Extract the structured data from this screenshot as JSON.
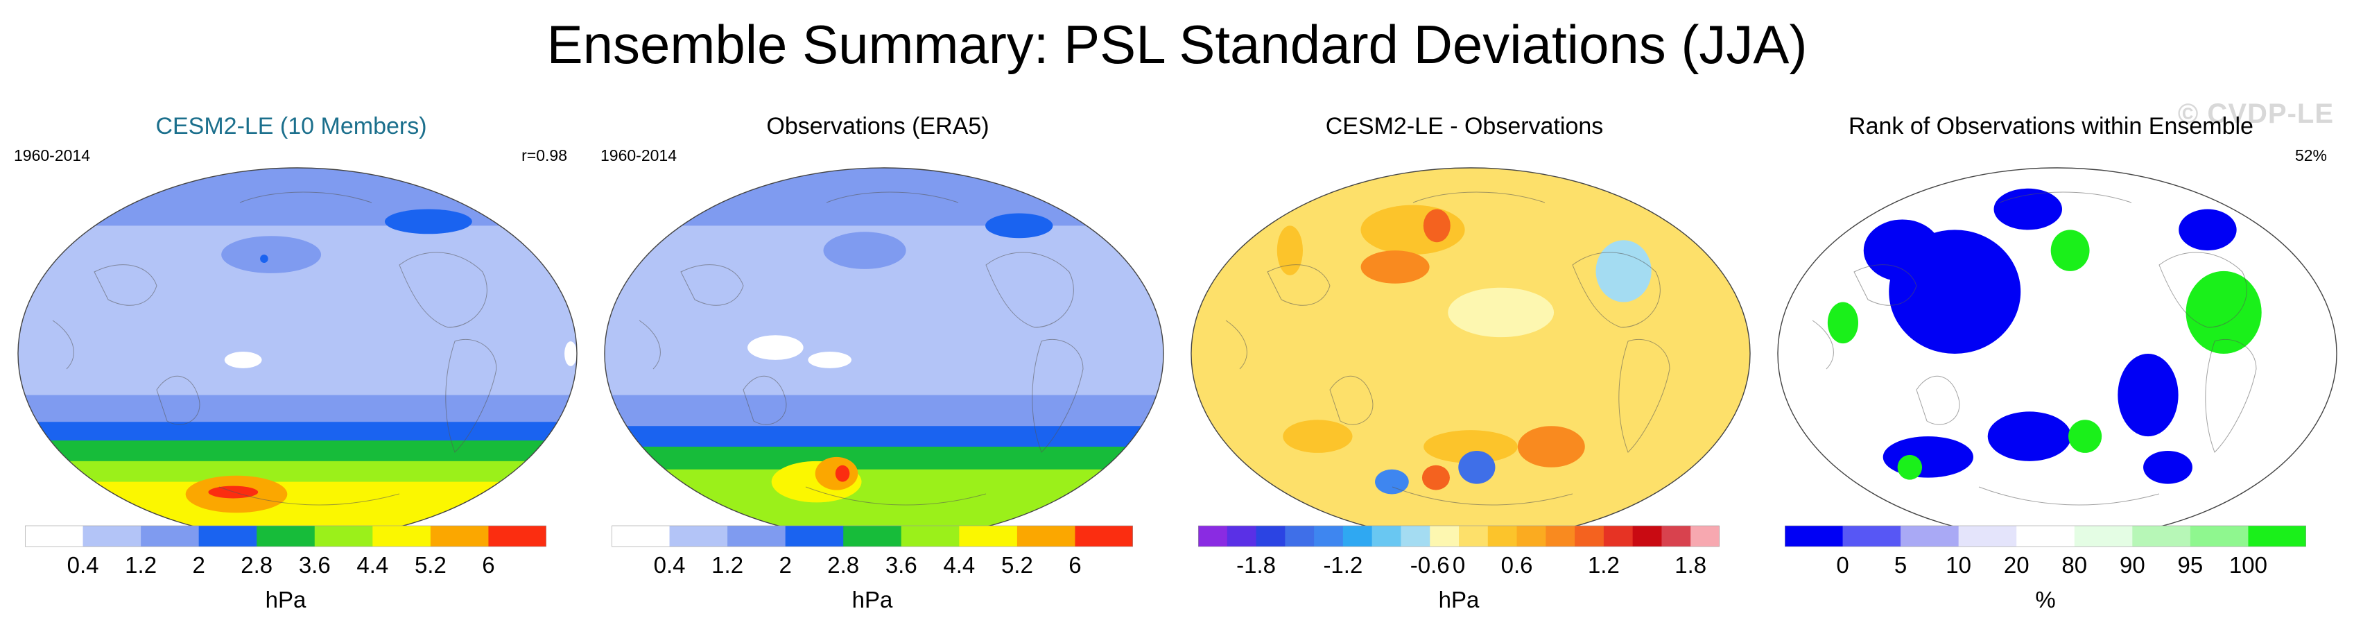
{
  "title": "Ensemble Summary: PSL Standard Deviations (JJA)",
  "colors": {
    "sd_scale": [
      "#ffffff",
      "#b3c4f7",
      "#7f9bf0",
      "#1a63f0",
      "#17bc3a",
      "#9bf01a",
      "#fbf700",
      "#fba700",
      "#fb2d10"
    ],
    "diff_scale": [
      "#8a2be2",
      "#5a30e6",
      "#2b44e3",
      "#3f6fe8",
      "#3e86f0",
      "#2fa8f2",
      "#69c7f2",
      "#a4dcf2",
      "#fdf7b0",
      "#fde06a",
      "#fcc42b",
      "#fbab20",
      "#f98a1f",
      "#f4621f",
      "#e63324",
      "#c90a12",
      "#d8424e",
      "#f7a8b0"
    ],
    "rank_scale": [
      "#0000f5",
      "#5757f5",
      "#a9a9f5",
      "#e4e4fb",
      "#ffffff",
      "#e4fde4",
      "#b7f7b7",
      "#8ff78f",
      "#1af01a"
    ]
  },
  "chart_data": [
    {
      "type": "heatmap",
      "title": "CESM2-LE (10 Members)",
      "period": "1960-2014",
      "stat": "r=0.98",
      "units": "hPa",
      "tick_labels": [
        "0.4",
        "1.2",
        "2",
        "2.8",
        "3.6",
        "4.4",
        "5.2",
        "6"
      ],
      "bands": [
        {
          "lat_max": 90,
          "lat_min": 62,
          "level": 2
        },
        {
          "lat_max": 62,
          "lat_min": 40,
          "level": 1
        },
        {
          "lat_max": 40,
          "lat_min": -20,
          "level": 1
        },
        {
          "lat_max": -20,
          "lat_min": -33,
          "level": 2
        },
        {
          "lat_max": -33,
          "lat_min": -42,
          "level": 3
        },
        {
          "lat_max": -42,
          "lat_min": -52,
          "level": 4
        },
        {
          "lat_max": -52,
          "lat_min": -62,
          "level": 5
        },
        {
          "lat_max": -62,
          "lat_min": -90,
          "level": 6
        }
      ],
      "blobs": [
        {
          "lon": 160,
          "lat": 48,
          "rx": 38,
          "ry": 9,
          "level": 2
        },
        {
          "lon": 155,
          "lat": 46,
          "rx": 3,
          "ry": 2,
          "level": 3
        },
        {
          "lon": 145,
          "lat": -3,
          "rx": 12,
          "ry": 4,
          "level": 0
        },
        {
          "lon": 300,
          "lat": 64,
          "rx": 40,
          "ry": 6,
          "level": 3
        },
        {
          "lon": 356,
          "lat": 0,
          "rx": 4,
          "ry": 6,
          "level": 0
        },
        {
          "lon": 120,
          "lat": -68,
          "rx": 50,
          "ry": 9,
          "level": 7
        },
        {
          "lon": 118,
          "lat": -67,
          "rx": 24,
          "ry": 3,
          "level": 8
        }
      ]
    },
    {
      "type": "heatmap",
      "title": "Observations (ERA5)",
      "period": "1960-2014",
      "units": "hPa",
      "tick_labels": [
        "0.4",
        "1.2",
        "2",
        "2.8",
        "3.6",
        "4.4",
        "5.2",
        "6"
      ],
      "bands": [
        {
          "lat_max": 90,
          "lat_min": 62,
          "level": 2
        },
        {
          "lat_max": 62,
          "lat_min": 40,
          "level": 1
        },
        {
          "lat_max": 40,
          "lat_min": -20,
          "level": 1
        },
        {
          "lat_max": -20,
          "lat_min": -35,
          "level": 2
        },
        {
          "lat_max": -35,
          "lat_min": -45,
          "level": 3
        },
        {
          "lat_max": -45,
          "lat_min": -56,
          "level": 4
        },
        {
          "lat_max": -56,
          "lat_min": -90,
          "level": 5
        }
      ],
      "blobs": [
        {
          "lon": 165,
          "lat": 50,
          "rx": 32,
          "ry": 9,
          "level": 2
        },
        {
          "lon": 110,
          "lat": 3,
          "rx": 18,
          "ry": 6,
          "level": 0
        },
        {
          "lon": 145,
          "lat": -3,
          "rx": 14,
          "ry": 4,
          "level": 0
        },
        {
          "lon": 300,
          "lat": 62,
          "rx": 30,
          "ry": 6,
          "level": 3
        },
        {
          "lon": 120,
          "lat": -62,
          "rx": 40,
          "ry": 10,
          "level": 6
        },
        {
          "lon": 140,
          "lat": -58,
          "rx": 18,
          "ry": 8,
          "level": 7
        },
        {
          "lon": 145,
          "lat": -58,
          "rx": 6,
          "ry": 4,
          "level": 8
        }
      ]
    },
    {
      "type": "heatmap",
      "title": "CESM2-LE - Observations",
      "units": "hPa",
      "tick_labels": [
        "-1.8",
        "-1.2",
        "-0.6",
        "0",
        "0.6",
        "1.2",
        "1.8"
      ],
      "bands": [
        {
          "lat_max": 90,
          "lat_min": -90,
          "level": 9
        }
      ],
      "blobs": [
        {
          "lon": 130,
          "lat": 60,
          "rx": 45,
          "ry": 12,
          "level": 10
        },
        {
          "lon": 125,
          "lat": 42,
          "rx": 25,
          "ry": 8,
          "level": 12
        },
        {
          "lon": 150,
          "lat": 62,
          "rx": 12,
          "ry": 8,
          "level": 13
        },
        {
          "lon": 290,
          "lat": 40,
          "rx": 20,
          "ry": 15,
          "level": 7
        },
        {
          "lon": 40,
          "lat": 50,
          "rx": 10,
          "ry": 12,
          "level": 10
        },
        {
          "lon": 200,
          "lat": 20,
          "rx": 35,
          "ry": 12,
          "level": 8
        },
        {
          "lon": 70,
          "lat": -40,
          "rx": 25,
          "ry": 8,
          "level": 10
        },
        {
          "lon": 180,
          "lat": -45,
          "rx": 35,
          "ry": 8,
          "level": 10
        },
        {
          "lon": 110,
          "lat": -62,
          "rx": 15,
          "ry": 6,
          "level": 4
        },
        {
          "lon": 150,
          "lat": -60,
          "rx": 12,
          "ry": 6,
          "level": 13
        },
        {
          "lon": 185,
          "lat": -55,
          "rx": 15,
          "ry": 8,
          "level": 3
        },
        {
          "lon": 240,
          "lat": -45,
          "rx": 25,
          "ry": 10,
          "level": 12
        }
      ]
    },
    {
      "type": "heatmap",
      "title": "Rank of Observations within Ensemble",
      "stat": "52%",
      "units": "%",
      "watermark": "© CVDP-LE",
      "tick_labels": [
        "0",
        "5",
        "10",
        "20",
        "80",
        "90",
        "95",
        "100"
      ],
      "bands": [
        {
          "lat_max": 90,
          "lat_min": -90,
          "level": 4
        }
      ],
      "blobs": [
        {
          "lon": 110,
          "lat": 30,
          "rx": 45,
          "ry": 30,
          "level": 0
        },
        {
          "lon": 60,
          "lat": 50,
          "rx": 30,
          "ry": 15,
          "level": 0
        },
        {
          "lon": 150,
          "lat": 70,
          "rx": 35,
          "ry": 10,
          "level": 0
        },
        {
          "lon": 40,
          "lat": 15,
          "rx": 10,
          "ry": 10,
          "level": 8
        },
        {
          "lon": 190,
          "lat": 50,
          "rx": 15,
          "ry": 10,
          "level": 8
        },
        {
          "lon": 290,
          "lat": 20,
          "rx": 25,
          "ry": 20,
          "level": 8
        },
        {
          "lon": 310,
          "lat": 60,
          "rx": 25,
          "ry": 10,
          "level": 0
        },
        {
          "lon": 240,
          "lat": -20,
          "rx": 20,
          "ry": 20,
          "level": 0
        },
        {
          "lon": 160,
          "lat": -40,
          "rx": 30,
          "ry": 12,
          "level": 0
        },
        {
          "lon": 80,
          "lat": -50,
          "rx": 35,
          "ry": 10,
          "level": 0
        },
        {
          "lon": 200,
          "lat": -40,
          "rx": 12,
          "ry": 8,
          "level": 8
        },
        {
          "lon": 60,
          "lat": -55,
          "rx": 10,
          "ry": 6,
          "level": 8
        },
        {
          "lon": 270,
          "lat": -55,
          "rx": 20,
          "ry": 8,
          "level": 0
        }
      ]
    }
  ]
}
